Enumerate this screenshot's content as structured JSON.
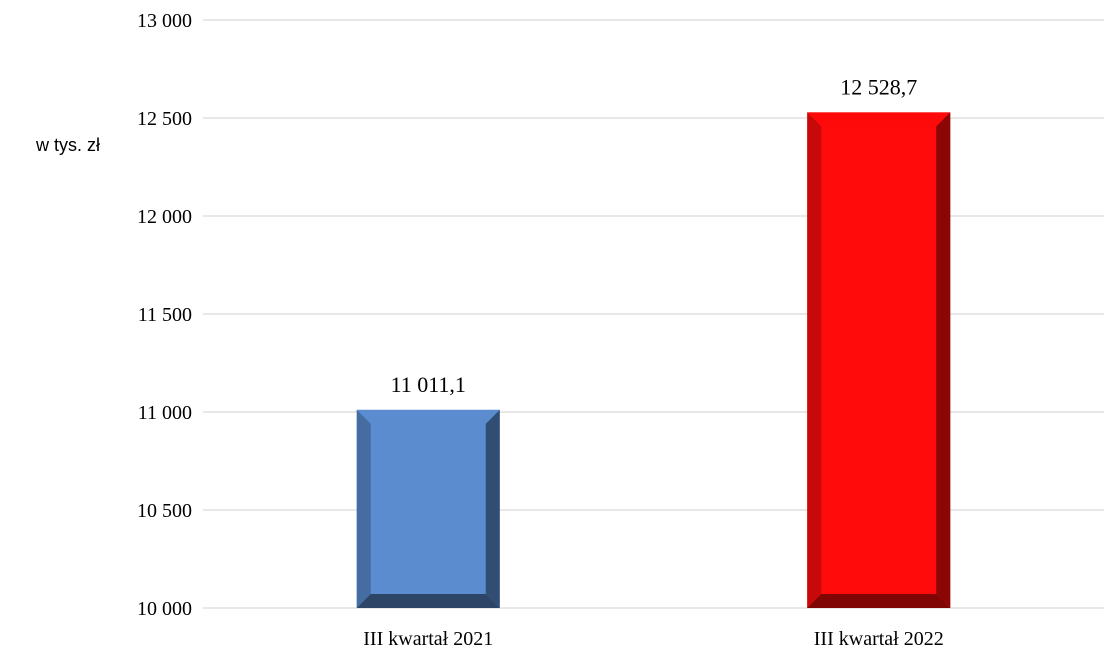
{
  "chart_data": {
    "type": "bar",
    "categories": [
      "III kwartał 2021",
      "III kwartał 2022"
    ],
    "values": [
      11011.1,
      12528.7
    ],
    "value_labels": [
      "11 011,1",
      "12 528,7"
    ],
    "ylabel": "w tys. zł",
    "ylim": [
      10000,
      13000
    ],
    "yticks": [
      10000,
      10500,
      11000,
      11500,
      12000,
      12500,
      13000
    ],
    "ytick_labels": [
      "10 000",
      "10 500",
      "11 000",
      "11 500",
      "12 000",
      "12 500",
      "13 000"
    ],
    "grid": true,
    "colors": [
      "#5a8ccf",
      "#ff0b0b"
    ]
  }
}
